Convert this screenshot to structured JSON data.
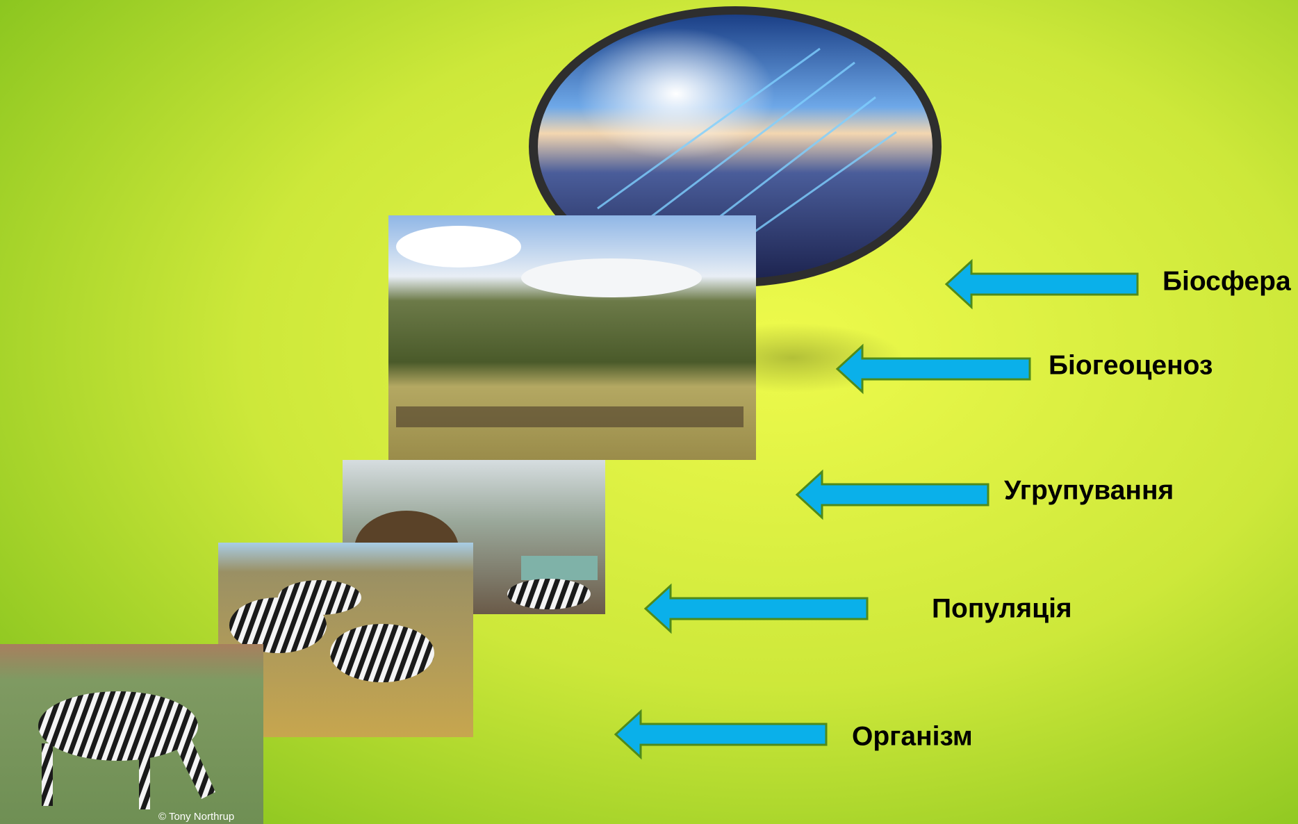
{
  "levels": [
    {
      "label": "Біосфера"
    },
    {
      "label": "Біогеоценоз"
    },
    {
      "label": "Угрупування"
    },
    {
      "label": "Популяція"
    },
    {
      "label": "Організм"
    }
  ],
  "photo_credit": "© Tony Northrup"
}
